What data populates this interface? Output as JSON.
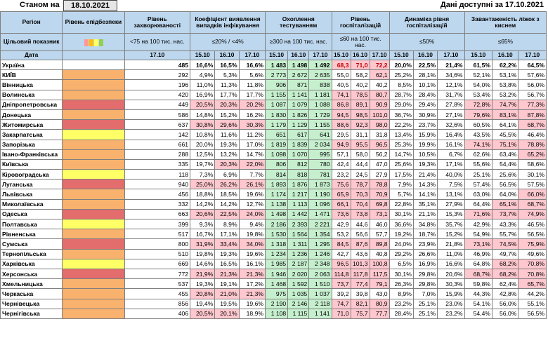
{
  "header": {
    "as_of_label": "Станом на",
    "date": "18.10.2021",
    "available_label": "Дані доступні за 17.10.2021"
  },
  "columns": {
    "region": "Регіон",
    "level": "Рівень епідбезпеки",
    "incidence": "Рівень захворюваності",
    "detection": "Коефіцієнт виявлення випадків інфікування",
    "testing": "Охоплення тестуванням",
    "hosp_level": "Рівень госпіталізацій",
    "hosp_dynamics": "Динаміка рівня госпіталізацій",
    "oxygen": "Завантаженість ліжок з киснем"
  },
  "targets": {
    "label": "Цільовий показник",
    "incidence": "<75 на 100 тис. нас.",
    "detection": "≤20% / <4%",
    "testing": "≥300 на 100 тис. нас.",
    "hosp_level": "≤60 на 100 тис. нас.",
    "hosp_dynamics": "≤50%",
    "oxygen": "≤65%"
  },
  "dates_row": {
    "label": "Дата",
    "incidence": "17.10",
    "d1": "15.10",
    "d2": "16.10",
    "d3": "17.10"
  },
  "legend_colors": [
    "#ff9999",
    "#ffc000",
    "#ffff66",
    "#92d050"
  ],
  "level_colors": {
    "orange": "#f8b26e",
    "red": "#e36c6c",
    "yellow": "#ffff66"
  },
  "rows": [
    {
      "name": "Україна",
      "level": "",
      "inc": "485",
      "det": [
        "16,6%",
        "16,5%",
        "16,6%"
      ],
      "tst": [
        "1 483",
        "1 498",
        "1 492"
      ],
      "hl": [
        "68,3",
        "71,0",
        "72,2"
      ],
      "hd": [
        "20,0%",
        "22,5%",
        "21,4%"
      ],
      "ox": [
        "61,5%",
        "62,2%",
        "64,5%"
      ]
    },
    {
      "name": "КИЇВ",
      "level": "orange",
      "inc": "292",
      "det": [
        "4,9%",
        "5,3%",
        "5,6%"
      ],
      "tst": [
        "2 773",
        "2 672",
        "2 635"
      ],
      "hl": [
        "55,0",
        "58,2",
        "62,1"
      ],
      "hd": [
        "25,2%",
        "28,1%",
        "34,6%"
      ],
      "ox": [
        "52,1%",
        "53,1%",
        "57,6%"
      ]
    },
    {
      "name": "Вінницька",
      "level": "orange",
      "inc": "196",
      "det": [
        "11,0%",
        "11,3%",
        "11,8%"
      ],
      "tst": [
        "906",
        "871",
        "838"
      ],
      "hl": [
        "40,5",
        "40,2",
        "40,2"
      ],
      "hd": [
        "8,5%",
        "10,1%",
        "12,1%"
      ],
      "ox": [
        "54,0%",
        "53,8%",
        "56,0%"
      ]
    },
    {
      "name": "Волинська",
      "level": "orange",
      "inc": "420",
      "det": [
        "16,9%",
        "17,7%",
        "17,7%"
      ],
      "tst": [
        "1 155",
        "1 141",
        "1 181"
      ],
      "hl": [
        "74,1",
        "78,5",
        "80,7"
      ],
      "hd": [
        "28,7%",
        "28,4%",
        "31,7%"
      ],
      "ox": [
        "53,4%",
        "53,2%",
        "56,7%"
      ]
    },
    {
      "name": "Дніпропетровська",
      "level": "red",
      "inc": "449",
      "det": [
        "20,5%",
        "20,3%",
        "20,2%"
      ],
      "tst": [
        "1 087",
        "1 079",
        "1 088"
      ],
      "hl": [
        "86,8",
        "89,1",
        "90,9"
      ],
      "hd": [
        "29,0%",
        "29,4%",
        "27,8%"
      ],
      "ox": [
        "72,8%",
        "74,7%",
        "77,3%"
      ]
    },
    {
      "name": "Донецька",
      "level": "orange",
      "inc": "586",
      "det": [
        "14,8%",
        "15,2%",
        "16,2%"
      ],
      "tst": [
        "1 830",
        "1 826",
        "1 729"
      ],
      "hl": [
        "94,5",
        "98,5",
        "101,0"
      ],
      "hd": [
        "36,7%",
        "30,9%",
        "27,1%"
      ],
      "ox": [
        "79,6%",
        "83,1%",
        "87,8%"
      ]
    },
    {
      "name": "Житомирська",
      "level": "red",
      "inc": "637",
      "det": [
        "30,8%",
        "29,6%",
        "30,3%"
      ],
      "tst": [
        "1 179",
        "1 129",
        "1 155"
      ],
      "hl": [
        "88,6",
        "92,3",
        "98,0"
      ],
      "hd": [
        "22,2%",
        "23,7%",
        "32,6%"
      ],
      "ox": [
        "60,5%",
        "64,1%",
        "68,7%"
      ]
    },
    {
      "name": "Закарпатська",
      "level": "yellow",
      "inc": "142",
      "det": [
        "10,8%",
        "11,6%",
        "11,2%"
      ],
      "tst": [
        "651",
        "617",
        "641"
      ],
      "hl": [
        "29,5",
        "31,1",
        "31,8"
      ],
      "hd": [
        "13,4%",
        "15,9%",
        "16,4%"
      ],
      "ox": [
        "43,5%",
        "45,5%",
        "46,4%"
      ]
    },
    {
      "name": "Запорізька",
      "level": "orange",
      "inc": "661",
      "det": [
        "20,0%",
        "19,3%",
        "17,0%"
      ],
      "tst": [
        "1 819",
        "1 839",
        "2 034"
      ],
      "hl": [
        "94,9",
        "95,5",
        "96,5"
      ],
      "hd": [
        "25,3%",
        "19,9%",
        "16,1%"
      ],
      "ox": [
        "74,1%",
        "75,1%",
        "78,8%"
      ]
    },
    {
      "name": "Івано-Франківська",
      "level": "orange",
      "inc": "288",
      "det": [
        "12,5%",
        "13,2%",
        "14,7%"
      ],
      "tst": [
        "1 098",
        "1 070",
        "995"
      ],
      "hl": [
        "57,1",
        "58,0",
        "56,2"
      ],
      "hd": [
        "14,7%",
        "10,5%",
        "6,7%"
      ],
      "ox": [
        "62,6%",
        "63,4%",
        "65,2%"
      ]
    },
    {
      "name": "Київська",
      "level": "orange",
      "inc": "335",
      "det": [
        "19,7%",
        "20,3%",
        "22,0%"
      ],
      "tst": [
        "806",
        "812",
        "780"
      ],
      "hl": [
        "42,4",
        "44,4",
        "47,0"
      ],
      "hd": [
        "25,6%",
        "19,3%",
        "17,1%"
      ],
      "ox": [
        "55,6%",
        "54,4%",
        "58,6%"
      ]
    },
    {
      "name": "Кіровоградська",
      "level": "yellow",
      "inc": "118",
      "det": [
        "7,3%",
        "6,9%",
        "7,7%"
      ],
      "tst": [
        "814",
        "818",
        "781"
      ],
      "hl": [
        "23,2",
        "24,5",
        "27,9"
      ],
      "hd": [
        "17,5%",
        "21,4%",
        "40,0%"
      ],
      "ox": [
        "25,1%",
        "25,6%",
        "30,1%"
      ]
    },
    {
      "name": "Луганська",
      "level": "red",
      "inc": "940",
      "det": [
        "25,0%",
        "26,2%",
        "26,1%"
      ],
      "tst": [
        "1 893",
        "1 876",
        "1 873"
      ],
      "hl": [
        "75,6",
        "78,7",
        "78,8"
      ],
      "hd": [
        "7,9%",
        "14,3%",
        "7,5%"
      ],
      "ox": [
        "57,4%",
        "56,5%",
        "57,5%"
      ]
    },
    {
      "name": "Львівська",
      "level": "orange",
      "inc": "456",
      "det": [
        "18,8%",
        "18,5%",
        "19,6%"
      ],
      "tst": [
        "1 174",
        "1 217",
        "1 190"
      ],
      "hl": [
        "65,9",
        "70,3",
        "70,9"
      ],
      "hd": [
        "5,7%",
        "14,1%",
        "13,1%"
      ],
      "ox": [
        "63,0%",
        "64,0%",
        "66,0%"
      ]
    },
    {
      "name": "Миколаївська",
      "level": "orange",
      "inc": "332",
      "det": [
        "14,2%",
        "14,2%",
        "12,7%"
      ],
      "tst": [
        "1 138",
        "1 113",
        "1 096"
      ],
      "hl": [
        "66,1",
        "70,4",
        "69,8"
      ],
      "hd": [
        "22,8%",
        "35,1%",
        "27,9%"
      ],
      "ox": [
        "64,4%",
        "65,1%",
        "68,7%"
      ]
    },
    {
      "name": "Одеська",
      "level": "red",
      "inc": "663",
      "det": [
        "20,6%",
        "22,5%",
        "24,0%"
      ],
      "tst": [
        "1 498",
        "1 442",
        "1 471"
      ],
      "hl": [
        "73,6",
        "73,8",
        "73,1"
      ],
      "hd": [
        "30,1%",
        "21,1%",
        "15,3%"
      ],
      "ox": [
        "71,6%",
        "73,7%",
        "74,9%"
      ]
    },
    {
      "name": "Полтавська",
      "level": "yellow",
      "inc": "399",
      "det": [
        "9,3%",
        "8,9%",
        "9,4%"
      ],
      "tst": [
        "2 186",
        "2 393",
        "2 221"
      ],
      "hl": [
        "42,9",
        "44,6",
        "46,0"
      ],
      "hd": [
        "36,6%",
        "34,8%",
        "35,7%"
      ],
      "ox": [
        "42,9%",
        "43,3%",
        "46,5%"
      ]
    },
    {
      "name": "Рівненська",
      "level": "orange",
      "inc": "517",
      "det": [
        "16,7%",
        "17,1%",
        "19,8%"
      ],
      "tst": [
        "1 530",
        "1 564",
        "1 354"
      ],
      "hl": [
        "53,2",
        "56,6",
        "57,7"
      ],
      "hd": [
        "19,2%",
        "18,7%",
        "15,2%"
      ],
      "ox": [
        "54,9%",
        "55,7%",
        "56,5%"
      ]
    },
    {
      "name": "Сумська",
      "level": "red",
      "inc": "800",
      "det": [
        "31,9%",
        "33,4%",
        "34,0%"
      ],
      "tst": [
        "1 318",
        "1 311",
        "1 295"
      ],
      "hl": [
        "84,5",
        "87,6",
        "89,8"
      ],
      "hd": [
        "24,0%",
        "23,9%",
        "21,8%"
      ],
      "ox": [
        "73,1%",
        "74,5%",
        "75,9%"
      ]
    },
    {
      "name": "Тернопільська",
      "level": "orange",
      "inc": "510",
      "det": [
        "19,8%",
        "19,3%",
        "19,6%"
      ],
      "tst": [
        "1 234",
        "1 236",
        "1 246"
      ],
      "hl": [
        "42,7",
        "43,6",
        "40,8"
      ],
      "hd": [
        "29,2%",
        "26,6%",
        "11,0%"
      ],
      "ox": [
        "46,9%",
        "49,7%",
        "49,6%"
      ]
    },
    {
      "name": "Харківська",
      "level": "yellow",
      "inc": "669",
      "det": [
        "14,6%",
        "16,5%",
        "16,1%"
      ],
      "tst": [
        "1 985",
        "2 187",
        "2 348"
      ],
      "hl": [
        "96,5",
        "101,3",
        "100,8"
      ],
      "hd": [
        "6,5%",
        "16,9%",
        "16,6%"
      ],
      "ox": [
        "64,8%",
        "68,2%",
        "70,8%"
      ]
    },
    {
      "name": "Херсонська",
      "level": "red",
      "inc": "772",
      "det": [
        "21,9%",
        "21,3%",
        "21,3%"
      ],
      "tst": [
        "1 946",
        "2 020",
        "2 063"
      ],
      "hl": [
        "114,8",
        "117,8",
        "117,5"
      ],
      "hd": [
        "30,1%",
        "29,8%",
        "20,6%"
      ],
      "ox": [
        "68,7%",
        "68,2%",
        "70,8%"
      ]
    },
    {
      "name": "Хмельницька",
      "level": "orange",
      "inc": "537",
      "det": [
        "19,3%",
        "19,1%",
        "17,2%"
      ],
      "tst": [
        "1 468",
        "1 592",
        "1 510"
      ],
      "hl": [
        "73,7",
        "77,4",
        "79,1"
      ],
      "hd": [
        "26,3%",
        "29,8%",
        "30,3%"
      ],
      "ox": [
        "59,8%",
        "62,4%",
        "65,7%"
      ]
    },
    {
      "name": "Черкаська",
      "level": "orange",
      "inc": "455",
      "det": [
        "20,8%",
        "21,0%",
        "21,3%"
      ],
      "tst": [
        "975",
        "1 035",
        "1 037"
      ],
      "hl": [
        "39,2",
        "39,8",
        "43,0"
      ],
      "hd": [
        "8,9%",
        "7,0%",
        "15,9%"
      ],
      "ox": [
        "44,3%",
        "42,8%",
        "44,2%"
      ]
    },
    {
      "name": "Чернівецька",
      "level": "orange",
      "inc": "856",
      "det": [
        "19,4%",
        "19,5%",
        "19,6%"
      ],
      "tst": [
        "2 190",
        "2 146",
        "2 118"
      ],
      "hl": [
        "74,7",
        "82,1",
        "80,9"
      ],
      "hd": [
        "23,2%",
        "25,1%",
        "23,0%"
      ],
      "ox": [
        "54,1%",
        "56,0%",
        "55,1%"
      ]
    },
    {
      "name": "Чернігівська",
      "level": "orange",
      "inc": "406",
      "det": [
        "20,5%",
        "20,1%",
        "18,9%"
      ],
      "tst": [
        "1 108",
        "1 115",
        "1 141"
      ],
      "hl": [
        "71,0",
        "75,7",
        "77,7"
      ],
      "hd": [
        "28,4%",
        "25,1%",
        "23,2%"
      ],
      "ox": [
        "54,4%",
        "56,0%",
        "56,5%"
      ]
    }
  ]
}
